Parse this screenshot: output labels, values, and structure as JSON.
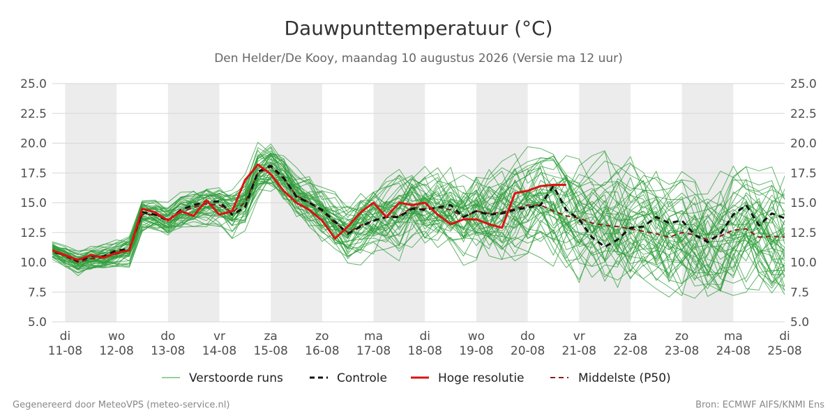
{
  "header": {
    "title": "Dauwpunttemperatuur (°C)",
    "subtitle": "Den Helder/De Kooy, maandag 10 augustus 2026 (Versie ma 12 uur)"
  },
  "footer": {
    "left": "Gegenereerd door MeteoVPS (meteo-service.nl)",
    "right": "Bron: ECMWF AIFS/KNMI Ens"
  },
  "legend": [
    {
      "key": "members",
      "label": "Verstoorde runs"
    },
    {
      "key": "control",
      "label": "Controle"
    },
    {
      "key": "hres",
      "label": "Hoge resolutie"
    },
    {
      "key": "median",
      "label": "Middelste (P50)"
    }
  ],
  "chart_data": {
    "type": "line",
    "title": "Dauwpunttemperatuur (°C)",
    "x_unit": "days since 2026-08-10 00:00",
    "xlim": [
      0.75,
      15.0
    ],
    "ylim": [
      5.0,
      25.0
    ],
    "y_ticks": [
      5.0,
      7.5,
      10.0,
      12.5,
      15.0,
      17.5,
      20.0,
      22.5,
      25.0
    ],
    "y_tick_labels": [
      "5.0",
      "7.5",
      "10.0",
      "12.5",
      "15.0",
      "17.5",
      "20.0",
      "22.5",
      "25.0"
    ],
    "x_ticks": [
      {
        "x": 1,
        "day": "di",
        "date": "11-08"
      },
      {
        "x": 2,
        "day": "wo",
        "date": "12-08"
      },
      {
        "x": 3,
        "day": "do",
        "date": "13-08"
      },
      {
        "x": 4,
        "day": "vr",
        "date": "14-08"
      },
      {
        "x": 5,
        "day": "za",
        "date": "15-08"
      },
      {
        "x": 6,
        "day": "zo",
        "date": "16-08"
      },
      {
        "x": 7,
        "day": "ma",
        "date": "17-08"
      },
      {
        "x": 8,
        "day": "di",
        "date": "18-08"
      },
      {
        "x": 9,
        "day": "wo",
        "date": "19-08"
      },
      {
        "x": 10,
        "day": "do",
        "date": "20-08"
      },
      {
        "x": 11,
        "day": "vr",
        "date": "21-08"
      },
      {
        "x": 12,
        "day": "za",
        "date": "22-08"
      },
      {
        "x": 13,
        "day": "zo",
        "date": "23-08"
      },
      {
        "x": 14,
        "day": "ma",
        "date": "24-08"
      },
      {
        "x": 15,
        "day": "di",
        "date": "25-08"
      }
    ],
    "shaded_days": [
      [
        1,
        2
      ],
      [
        3,
        4
      ],
      [
        5,
        6
      ],
      [
        7,
        8
      ],
      [
        9,
        10
      ],
      [
        11,
        12
      ],
      [
        13,
        14
      ],
      [
        15,
        16
      ]
    ],
    "grid": true,
    "legend_position": "bottom",
    "colors": {
      "members": "#2e9e3a",
      "control": "#111111",
      "hres": "#dd1111",
      "median": "#8b1a1a",
      "shade": "#ececec",
      "grid": "#d6d6d6"
    },
    "series": [
      {
        "name": "Controle",
        "style": "dashed",
        "color": "#111111",
        "x": [
          0.5,
          0.75,
          1.0,
          1.25,
          1.5,
          1.75,
          2.0,
          2.25,
          2.5,
          2.75,
          3.0,
          3.25,
          3.5,
          3.75,
          4.0,
          4.25,
          4.5,
          4.75,
          5.0,
          5.25,
          5.5,
          5.75,
          6.0,
          6.25,
          6.5,
          6.75,
          7.0,
          7.25,
          7.5,
          7.75,
          8.0,
          8.25,
          8.5,
          8.75,
          9.0,
          9.25,
          9.5,
          9.75,
          10.0,
          10.25,
          10.5,
          10.75,
          11.0,
          11.25,
          11.5,
          11.75,
          12.0,
          12.25,
          12.5,
          12.75,
          13.0,
          13.25,
          13.5,
          13.75,
          14.0,
          14.25,
          14.5,
          14.75,
          15.0,
          15.25
        ],
        "y": [
          11.8,
          10.9,
          10.6,
          10.1,
          10.5,
          10.5,
          11.0,
          11.1,
          14.2,
          14.0,
          13.5,
          14.4,
          14.8,
          15.1,
          15.1,
          14.0,
          14.6,
          17.6,
          18.1,
          17.1,
          15.5,
          15.0,
          14.4,
          13.4,
          12.4,
          13.0,
          13.5,
          13.8,
          13.8,
          14.5,
          14.4,
          14.6,
          14.8,
          13.8,
          14.3,
          14.0,
          14.1,
          14.4,
          14.6,
          14.8,
          16.4,
          14.4,
          13.6,
          12.1,
          11.3,
          11.9,
          12.9,
          13.0,
          13.8,
          13.3,
          13.5,
          12.3,
          11.7,
          12.4,
          14.0,
          14.8,
          13.1,
          14.1,
          13.7,
          10.6
        ]
      },
      {
        "name": "Hoge resolutie",
        "style": "solid",
        "color": "#dd1111",
        "x": [
          0.5,
          0.75,
          1.0,
          1.25,
          1.5,
          1.75,
          2.0,
          2.25,
          2.5,
          2.75,
          3.0,
          3.25,
          3.5,
          3.75,
          4.0,
          4.25,
          4.5,
          4.75,
          5.0,
          5.25,
          5.5,
          5.75,
          6.0,
          6.25,
          6.5,
          6.75,
          7.0,
          7.25,
          7.5,
          7.75,
          8.0,
          8.25,
          8.5,
          8.75,
          9.0,
          9.25,
          9.5,
          9.75,
          10.0,
          10.25,
          10.5,
          10.75
        ],
        "y": [
          12.3,
          11.0,
          10.6,
          10.2,
          10.6,
          10.4,
          10.8,
          11.0,
          14.5,
          14.2,
          13.5,
          14.3,
          13.9,
          15.2,
          14.0,
          14.3,
          16.9,
          18.2,
          17.4,
          16.0,
          15.0,
          14.4,
          13.5,
          12.0,
          13.0,
          14.2,
          15.0,
          13.8,
          15.0,
          14.8,
          15.0,
          14.0,
          13.2,
          13.6,
          13.6,
          13.2,
          12.9,
          15.8,
          16.0,
          16.4,
          16.5,
          16.5
        ]
      },
      {
        "name": "Middelste (P50)",
        "style": "dashed",
        "color": "#8b1a1a",
        "x": [
          0.5,
          0.75,
          1.0,
          1.25,
          1.5,
          1.75,
          2.0,
          2.25,
          2.5,
          2.75,
          3.0,
          3.25,
          3.5,
          3.75,
          4.0,
          4.25,
          4.5,
          4.75,
          5.0,
          5.25,
          5.5,
          5.75,
          6.0,
          6.25,
          6.5,
          6.75,
          7.0,
          7.25,
          7.5,
          7.75,
          8.0,
          8.25,
          8.5,
          8.75,
          9.0,
          9.25,
          9.5,
          9.75,
          10.0,
          10.25,
          10.5,
          10.75,
          11.0,
          11.25,
          11.5,
          11.75,
          12.0,
          12.25,
          12.5,
          12.75,
          13.0,
          13.25,
          13.5,
          13.75,
          14.0,
          14.25,
          14.5,
          14.75,
          15.0,
          15.25
        ],
        "y": [
          12.0,
          11.0,
          10.5,
          10.0,
          10.3,
          10.4,
          10.7,
          11.0,
          14.0,
          14.0,
          13.6,
          14.2,
          14.6,
          14.9,
          14.8,
          14.2,
          15.0,
          17.5,
          18.0,
          17.0,
          15.6,
          15.0,
          14.3,
          13.3,
          12.5,
          13.1,
          13.5,
          13.8,
          13.9,
          14.6,
          14.5,
          14.6,
          14.4,
          13.8,
          14.3,
          14.1,
          14.2,
          14.5,
          14.8,
          14.8,
          14.3,
          13.9,
          13.7,
          13.3,
          13.1,
          13.0,
          12.8,
          12.6,
          12.4,
          12.1,
          12.5,
          12.3,
          11.9,
          12.2,
          12.7,
          12.8,
          12.1,
          12.2,
          12.1,
          12.6
        ]
      }
    ],
    "members": {
      "name": "Verstoorde runs",
      "count": 50,
      "x_start": 0.5,
      "x_end": 15.25,
      "x_step": 0.25,
      "median_y": [
        12.0,
        11.0,
        10.5,
        10.0,
        10.3,
        10.4,
        10.7,
        11.0,
        14.0,
        14.0,
        13.6,
        14.2,
        14.6,
        14.9,
        14.8,
        14.2,
        15.0,
        17.5,
        18.0,
        17.0,
        15.6,
        15.0,
        14.3,
        13.3,
        12.5,
        13.1,
        13.5,
        13.8,
        13.9,
        14.6,
        14.5,
        14.6,
        14.4,
        13.8,
        14.3,
        14.1,
        14.2,
        14.5,
        14.8,
        14.8,
        14.3,
        13.9,
        13.7,
        13.3,
        13.1,
        13.0,
        12.8,
        12.6,
        12.4,
        12.1,
        12.5,
        12.3,
        11.9,
        12.2,
        12.7,
        12.8,
        12.1,
        12.2,
        12.1,
        12.6
      ],
      "spread_y": [
        0.5,
        0.6,
        0.7,
        0.8,
        0.8,
        0.8,
        0.9,
        1.0,
        1.1,
        1.0,
        1.0,
        1.1,
        1.2,
        1.4,
        1.4,
        1.5,
        1.5,
        1.6,
        1.7,
        1.7,
        1.8,
        1.9,
        2.0,
        2.0,
        2.1,
        2.2,
        2.3,
        2.4,
        2.5,
        2.6,
        2.7,
        2.8,
        2.9,
        3.0,
        3.1,
        3.2,
        3.3,
        3.4,
        3.5,
        3.6,
        3.6,
        3.7,
        3.8,
        3.8,
        3.9,
        3.9,
        4.0,
        4.0,
        4.0,
        4.1,
        4.1,
        4.1,
        4.2,
        4.2,
        4.2,
        4.3,
        4.3,
        4.3,
        4.3,
        4.3
      ]
    }
  }
}
